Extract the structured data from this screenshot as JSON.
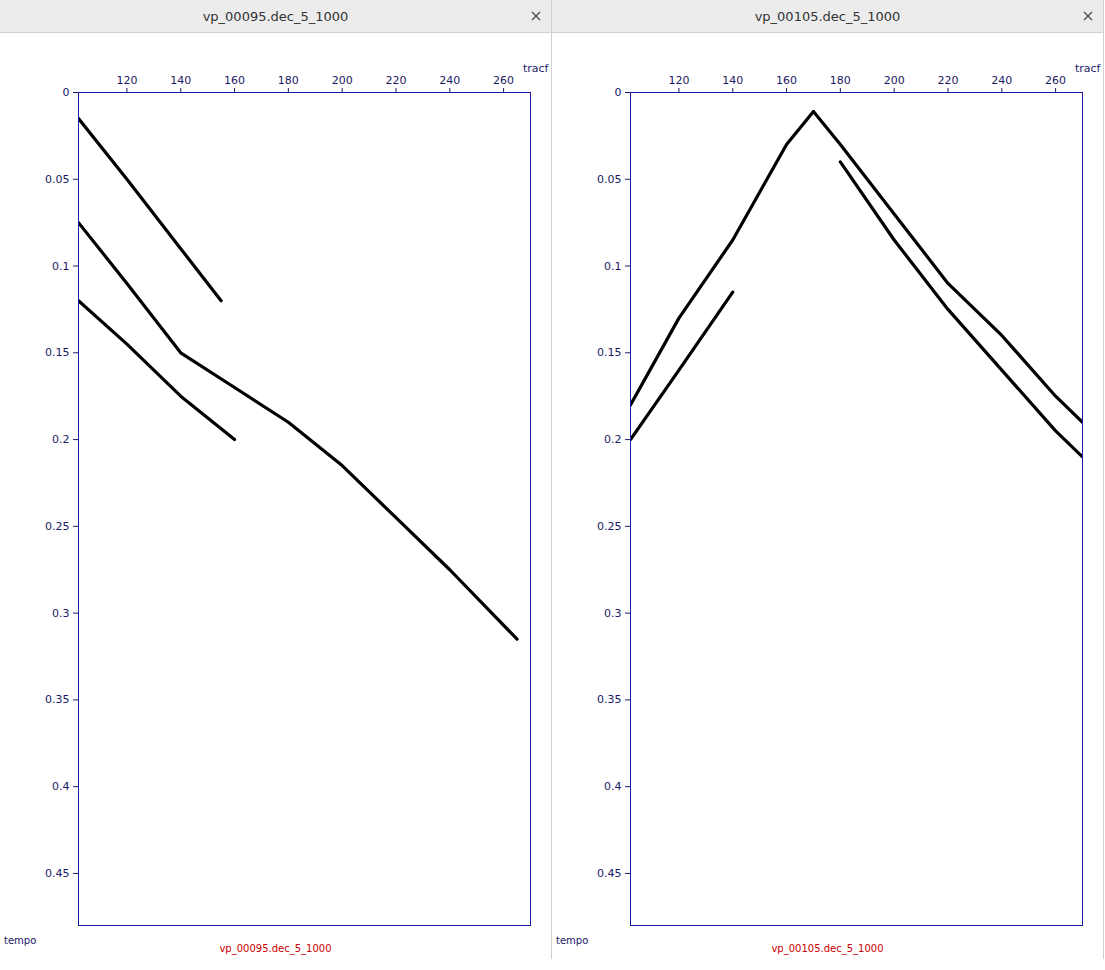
{
  "chart_data": [
    {
      "type": "line",
      "title": "vp_00095.dec_5_1000",
      "caption": "vp_00095.dec_5_1000",
      "x_label": "tracf",
      "y_label": "tempo",
      "color": "#000000",
      "xlim": [
        102,
        270
      ],
      "ylim": [
        0,
        0.48
      ],
      "xticks": [
        120,
        140,
        160,
        180,
        200,
        220,
        240,
        260
      ],
      "yticks": [
        0,
        0.05,
        0.1,
        0.15,
        0.2,
        0.25,
        0.3,
        0.35,
        0.4,
        0.45
      ],
      "series": [
        {
          "x": [
            102,
            120,
            140,
            155
          ],
          "values": [
            0.015,
            0.05,
            0.09,
            0.12
          ]
        },
        {
          "x": [
            102,
            120,
            140,
            160,
            180,
            200,
            220,
            240,
            265
          ],
          "values": [
            0.075,
            0.11,
            0.15,
            0.17,
            0.19,
            0.215,
            0.245,
            0.275,
            0.315
          ]
        },
        {
          "x": [
            102,
            120,
            140,
            160
          ],
          "values": [
            0.12,
            0.145,
            0.175,
            0.2
          ]
        }
      ]
    },
    {
      "type": "line",
      "title": "vp_00105.dec_5_1000",
      "caption": "vp_00105.dec_5_1000",
      "x_label": "tracf",
      "y_label": "tempo",
      "color": "#000000",
      "xlim": [
        102,
        270
      ],
      "ylim": [
        0,
        0.48
      ],
      "xticks": [
        120,
        140,
        160,
        180,
        200,
        220,
        240,
        260
      ],
      "yticks": [
        0,
        0.05,
        0.1,
        0.15,
        0.2,
        0.25,
        0.3,
        0.35,
        0.4,
        0.45
      ],
      "series": [
        {
          "x": [
            102,
            120,
            140,
            160,
            170
          ],
          "values": [
            0.18,
            0.13,
            0.085,
            0.03,
            0.011
          ]
        },
        {
          "x": [
            170,
            180,
            200,
            220,
            240,
            260,
            270
          ],
          "values": [
            0.011,
            0.03,
            0.07,
            0.11,
            0.14,
            0.175,
            0.19
          ]
        },
        {
          "x": [
            102,
            120,
            140
          ],
          "values": [
            0.2,
            0.16,
            0.115
          ]
        },
        {
          "x": [
            180,
            200,
            220,
            240,
            260,
            270
          ],
          "values": [
            0.04,
            0.085,
            0.125,
            0.16,
            0.195,
            0.21
          ]
        }
      ]
    }
  ]
}
